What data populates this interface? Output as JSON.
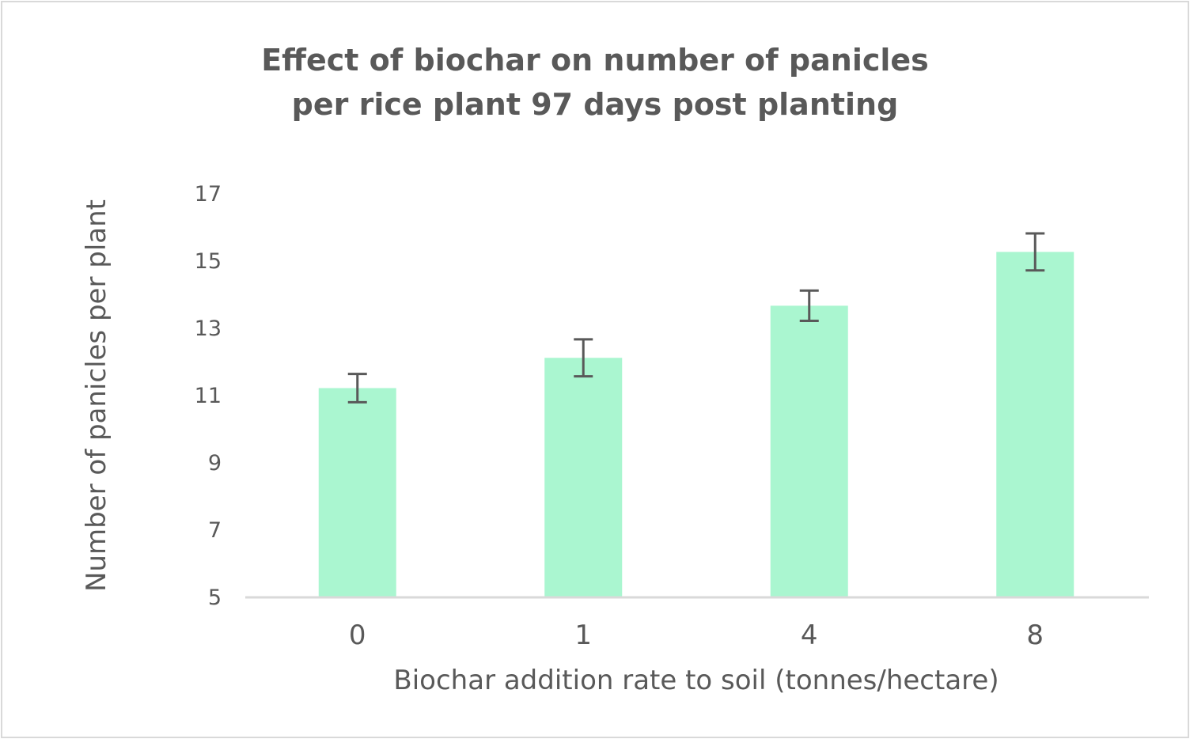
{
  "chart_data": {
    "type": "bar",
    "title_lines": [
      "Effect of biochar on number of panicles",
      "per rice plant 97 days post planting"
    ],
    "xlabel": "Biochar addition rate to soil (tonnes/hectare)",
    "ylabel": "Number of panicles per plant",
    "categories": [
      "0",
      "1",
      "4",
      "8"
    ],
    "values": [
      11.2,
      12.1,
      13.65,
      15.25
    ],
    "error": [
      0.42,
      0.55,
      0.45,
      0.55
    ],
    "ylim": [
      5,
      17
    ],
    "yticks": [
      "5",
      "7",
      "9",
      "11",
      "13",
      "15",
      "17"
    ],
    "grid": false,
    "legend": "none",
    "bar_color": "#aaf6d0",
    "error_color": "#595959",
    "axis_color": "#d9d9d9"
  }
}
